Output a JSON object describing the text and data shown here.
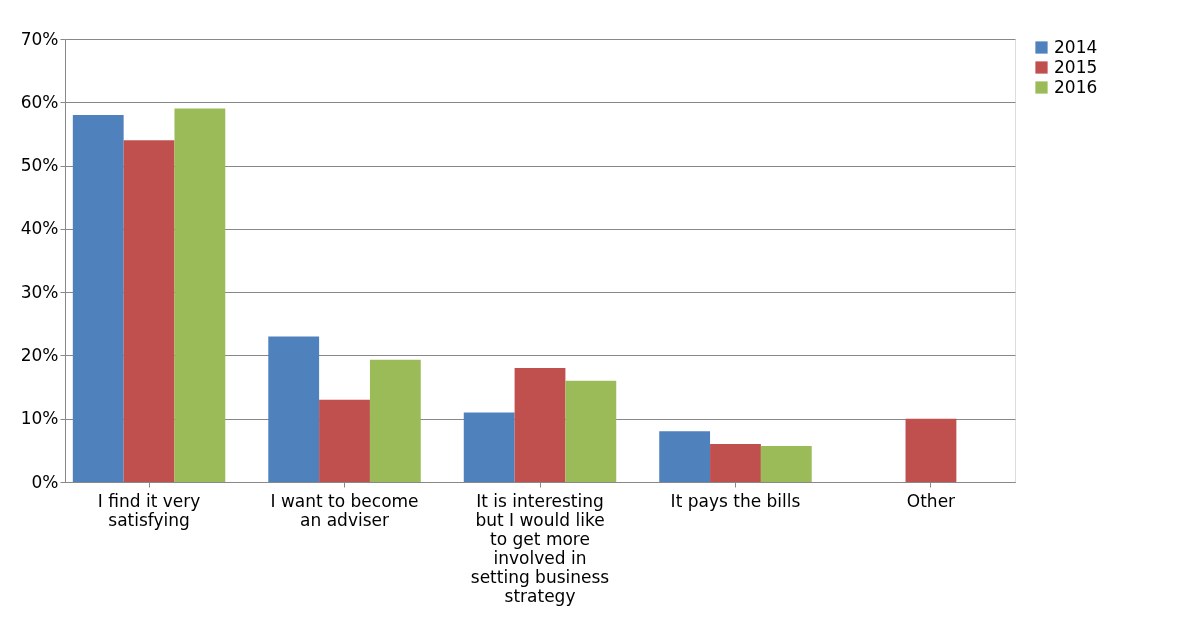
{
  "chart_data": {
    "type": "bar",
    "categories": [
      "I find it very satisfying",
      "I want to become an adviser",
      "It is interesting but I would like to get more involved in setting business strategy",
      "It pays the bills",
      "Other"
    ],
    "series": [
      {
        "name": "2014",
        "color": "#4f81bd",
        "values": [
          58,
          23,
          11,
          8,
          null
        ]
      },
      {
        "name": "2015",
        "color": "#c0504d",
        "values": [
          54,
          13,
          18,
          6,
          10
        ]
      },
      {
        "name": "2016",
        "color": "#9bbb59",
        "values": [
          59,
          19.3,
          16,
          5.7,
          null
        ]
      }
    ],
    "ylim": [
      0,
      70
    ],
    "yticks": [
      {
        "value": 0,
        "label": "0%"
      },
      {
        "value": 10,
        "label": "10%"
      },
      {
        "value": 20,
        "label": "20%"
      },
      {
        "value": 30,
        "label": "30%"
      },
      {
        "value": 40,
        "label": "40%"
      },
      {
        "value": 50,
        "label": "50%"
      },
      {
        "value": 60,
        "label": "60%"
      },
      {
        "value": 70,
        "label": "70%"
      }
    ],
    "grid": "y",
    "legend": "right"
  }
}
